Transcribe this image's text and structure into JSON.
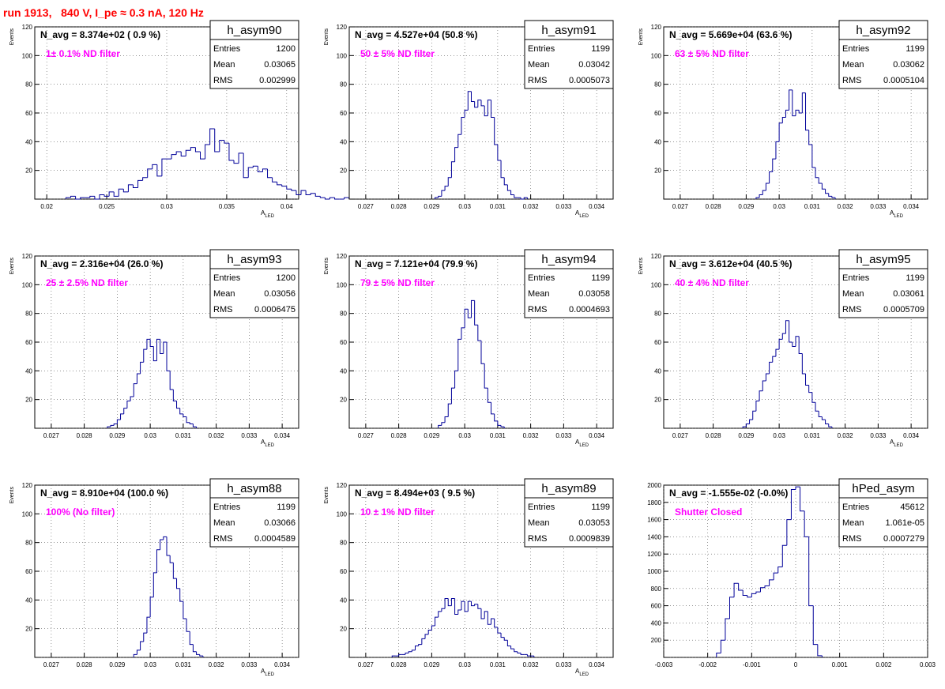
{
  "run_title": "run 1913,   840 V, I_pe ≈ 0.3 nA, 120 Hz",
  "colors": {
    "hist": "#000099",
    "title": "#ff0000",
    "label": "#ff00ff",
    "grid": "#555555"
  },
  "stats_labels": {
    "entries": "Entries",
    "mean": "Mean",
    "rms": "RMS"
  },
  "chart_data": [
    {
      "type": "histogram",
      "name": "h_asym90",
      "navg": "N_avg = 8.374e+02 ( 0.9 %)",
      "label": "1± 0.1% ND filter",
      "stats": {
        "entries": "1200",
        "mean": "0.03065",
        "rms": "0.002999"
      },
      "ylabel": "Events",
      "xlabel": "A",
      "xlabel_sub": "LED",
      "xlim": [
        0.019,
        0.041
      ],
      "ylim": [
        0,
        120
      ],
      "xticks": [
        0.02,
        0.025,
        0.03,
        0.035,
        0.04
      ],
      "xtick_labels": [
        "0.02",
        "0.025",
        "0.03",
        "0.035",
        "0.04"
      ],
      "yticks": [
        0,
        20,
        40,
        60,
        80,
        100,
        120
      ],
      "ytick_labels": [
        "",
        "20",
        "40",
        "60",
        "80",
        "100",
        "120"
      ],
      "x_start": 0.0216,
      "bin_width": 0.0004,
      "values": [
        1,
        2,
        0,
        1,
        1,
        2,
        0,
        3,
        2,
        5,
        2,
        7,
        5,
        10,
        8,
        13,
        15,
        21,
        24,
        16,
        28,
        28,
        31,
        33,
        30,
        34,
        36,
        33,
        28,
        38,
        49,
        33,
        41,
        39,
        27,
        25,
        32,
        15,
        22,
        23,
        19,
        21,
        15,
        12,
        10,
        9,
        7,
        6,
        3,
        6,
        3,
        4,
        2,
        1,
        0,
        1,
        0,
        0,
        1
      ]
    },
    {
      "type": "histogram",
      "name": "h_asym91",
      "navg": "N_avg = 4.527e+04 (50.8 %)",
      "label": "50 ± 5% ND filter",
      "stats": {
        "entries": "1199",
        "mean": "0.03042",
        "rms": "0.0005073"
      },
      "ylabel": "Events",
      "xlabel": "A",
      "xlabel_sub": "LED",
      "xlim": [
        0.0265,
        0.0345
      ],
      "ylim": [
        0,
        120
      ],
      "xticks": [
        0.027,
        0.028,
        0.029,
        0.03,
        0.031,
        0.032,
        0.033,
        0.034
      ],
      "xtick_labels": [
        "0.027",
        "0.028",
        "0.029",
        "0.03",
        "0.031",
        "0.032",
        "0.033",
        "0.034"
      ],
      "yticks": [
        0,
        20,
        40,
        60,
        80,
        100,
        120
      ],
      "ytick_labels": [
        "",
        "20",
        "40",
        "60",
        "80",
        "100",
        "120"
      ],
      "x_start": 0.0291,
      "bin_width": 0.0001,
      "values": [
        1,
        2,
        6,
        9,
        15,
        26,
        36,
        45,
        57,
        62,
        75,
        68,
        64,
        69,
        65,
        58,
        69,
        57,
        38,
        27,
        15,
        10,
        6,
        3,
        1,
        1,
        0,
        1
      ]
    },
    {
      "type": "histogram",
      "name": "h_asym92",
      "navg": "N_avg = 5.669e+04 (63.6 %)",
      "label": "63 ± 5% ND filter",
      "stats": {
        "entries": "1199",
        "mean": "0.03062",
        "rms": "0.0005104"
      },
      "ylabel": "Events",
      "xlabel": "A",
      "xlabel_sub": "LED",
      "xlim": [
        0.0265,
        0.0345
      ],
      "ylim": [
        0,
        120
      ],
      "xticks": [
        0.027,
        0.028,
        0.029,
        0.03,
        0.031,
        0.032,
        0.033,
        0.034
      ],
      "xtick_labels": [
        "0.027",
        "0.028",
        "0.029",
        "0.03",
        "0.031",
        "0.032",
        "0.033",
        "0.034"
      ],
      "yticks": [
        0,
        20,
        40,
        60,
        80,
        100,
        120
      ],
      "ytick_labels": [
        "",
        "20",
        "40",
        "60",
        "80",
        "100",
        "120"
      ],
      "x_start": 0.0293,
      "bin_width": 0.0001,
      "values": [
        1,
        3,
        6,
        11,
        19,
        28,
        40,
        53,
        57,
        62,
        76,
        58,
        62,
        60,
        74,
        48,
        38,
        22,
        15,
        11,
        7,
        4,
        2,
        1
      ]
    },
    {
      "type": "histogram",
      "name": "h_asym93",
      "navg": "N_avg = 2.316e+04 (26.0 %)",
      "label": "25 ± 2.5% ND filter",
      "stats": {
        "entries": "1200",
        "mean": "0.03056",
        "rms": "0.0006475"
      },
      "ylabel": "Events",
      "xlabel": "A",
      "xlabel_sub": "LED",
      "xlim": [
        0.0265,
        0.0345
      ],
      "ylim": [
        0,
        120
      ],
      "xticks": [
        0.027,
        0.028,
        0.029,
        0.03,
        0.031,
        0.032,
        0.033,
        0.034
      ],
      "xtick_labels": [
        "0.027",
        "0.028",
        "0.029",
        "0.03",
        "0.031",
        "0.032",
        "0.033",
        "0.034"
      ],
      "yticks": [
        0,
        20,
        40,
        60,
        80,
        100,
        120
      ],
      "ytick_labels": [
        "",
        "20",
        "40",
        "60",
        "80",
        "100",
        "120"
      ],
      "x_start": 0.0287,
      "bin_width": 0.0001,
      "values": [
        1,
        2,
        3,
        6,
        10,
        14,
        19,
        22,
        31,
        38,
        46,
        55,
        62,
        57,
        47,
        62,
        52,
        60,
        40,
        27,
        19,
        14,
        10,
        8,
        4,
        3,
        1
      ]
    },
    {
      "type": "histogram",
      "name": "h_asym94",
      "navg": "N_avg = 7.121e+04 (79.9 %)",
      "label": "79 ± 5% ND filter",
      "stats": {
        "entries": "1199",
        "mean": "0.03058",
        "rms": "0.0004693"
      },
      "ylabel": "Events",
      "xlabel": "A",
      "xlabel_sub": "LED",
      "xlim": [
        0.0265,
        0.0345
      ],
      "ylim": [
        0,
        120
      ],
      "xticks": [
        0.027,
        0.028,
        0.029,
        0.03,
        0.031,
        0.032,
        0.033,
        0.034
      ],
      "xtick_labels": [
        "0.027",
        "0.028",
        "0.029",
        "0.03",
        "0.031",
        "0.032",
        "0.033",
        "0.034"
      ],
      "yticks": [
        0,
        20,
        40,
        60,
        80,
        100,
        120
      ],
      "ytick_labels": [
        "",
        "20",
        "40",
        "60",
        "80",
        "100",
        "120"
      ],
      "x_start": 0.0292,
      "bin_width": 0.0001,
      "values": [
        2,
        4,
        8,
        17,
        28,
        40,
        62,
        70,
        83,
        77,
        89,
        72,
        61,
        45,
        28,
        18,
        10,
        5,
        2,
        1
      ]
    },
    {
      "type": "histogram",
      "name": "h_asym95",
      "navg": "N_avg = 3.612e+04 (40.5 %)",
      "label": "40 ± 4% ND filter",
      "stats": {
        "entries": "1199",
        "mean": "0.03061",
        "rms": "0.0005709"
      },
      "ylabel": "Events",
      "xlabel": "A",
      "xlabel_sub": "LED",
      "xlim": [
        0.0265,
        0.0345
      ],
      "ylim": [
        0,
        120
      ],
      "xticks": [
        0.027,
        0.028,
        0.029,
        0.03,
        0.031,
        0.032,
        0.033,
        0.034
      ],
      "xtick_labels": [
        "0.027",
        "0.028",
        "0.029",
        "0.03",
        "0.031",
        "0.032",
        "0.033",
        "0.034"
      ],
      "yticks": [
        0,
        20,
        40,
        60,
        80,
        100,
        120
      ],
      "ytick_labels": [
        "",
        "20",
        "40",
        "60",
        "80",
        "100",
        "120"
      ],
      "x_start": 0.0289,
      "bin_width": 0.0001,
      "values": [
        1,
        3,
        6,
        12,
        19,
        26,
        33,
        38,
        46,
        50,
        55,
        62,
        66,
        75,
        60,
        57,
        64,
        52,
        38,
        30,
        25,
        18,
        12,
        8,
        6,
        3,
        1
      ]
    },
    {
      "type": "histogram",
      "name": "h_asym88",
      "navg": "N_avg = 8.910e+04 (100.0 %)",
      "label": "100% (No filter)",
      "stats": {
        "entries": "1199",
        "mean": "0.03066",
        "rms": "0.0004589"
      },
      "ylabel": "Events",
      "xlabel": "A",
      "xlabel_sub": "LED",
      "xlim": [
        0.0265,
        0.0345
      ],
      "ylim": [
        0,
        120
      ],
      "xticks": [
        0.027,
        0.028,
        0.029,
        0.03,
        0.031,
        0.032,
        0.033,
        0.034
      ],
      "xtick_labels": [
        "0.027",
        "0.028",
        "0.029",
        "0.03",
        "0.031",
        "0.032",
        "0.033",
        "0.034"
      ],
      "yticks": [
        0,
        20,
        40,
        60,
        80,
        100,
        120
      ],
      "ytick_labels": [
        "",
        "20",
        "40",
        "60",
        "80",
        "100",
        "120"
      ],
      "x_start": 0.0295,
      "bin_width": 0.0001,
      "values": [
        2,
        5,
        11,
        17,
        28,
        42,
        59,
        75,
        82,
        84,
        71,
        66,
        55,
        48,
        39,
        27,
        18,
        9,
        4,
        2,
        1
      ]
    },
    {
      "type": "histogram",
      "name": "h_asym89",
      "navg": "N_avg = 8.494e+03 ( 9.5 %)",
      "label": "10 ± 1% ND filter",
      "stats": {
        "entries": "1199",
        "mean": "0.03053",
        "rms": "0.0009839"
      },
      "ylabel": "Events",
      "xlabel": "A",
      "xlabel_sub": "LED",
      "xlim": [
        0.0265,
        0.0345
      ],
      "ylim": [
        0,
        120
      ],
      "xticks": [
        0.027,
        0.028,
        0.029,
        0.03,
        0.031,
        0.032,
        0.033,
        0.034
      ],
      "xtick_labels": [
        "0.027",
        "0.028",
        "0.029",
        "0.03",
        "0.031",
        "0.032",
        "0.033",
        "0.034"
      ],
      "yticks": [
        0,
        20,
        40,
        60,
        80,
        100,
        120
      ],
      "ytick_labels": [
        "",
        "20",
        "40",
        "60",
        "80",
        "100",
        "120"
      ],
      "x_start": 0.0278,
      "bin_width": 0.0001,
      "values": [
        1,
        1,
        2,
        2,
        3,
        4,
        5,
        8,
        9,
        13,
        16,
        19,
        22,
        28,
        32,
        34,
        41,
        36,
        41,
        30,
        33,
        39,
        32,
        39,
        36,
        37,
        34,
        27,
        32,
        23,
        27,
        21,
        17,
        14,
        12,
        8,
        6,
        4,
        3,
        2,
        2,
        1,
        1
      ]
    },
    {
      "type": "histogram",
      "name": "hPed_asym",
      "navg": "N_avg = -1.555e-02 (-0.0%)",
      "label": "Shutter Closed",
      "stats": {
        "entries": "45612",
        "mean": "1.061e-05",
        "rms": "0.0007279"
      },
      "ylabel": "",
      "xlabel": "",
      "xlabel_sub": "",
      "xlim": [
        -0.003,
        0.003
      ],
      "ylim": [
        0,
        2000
      ],
      "xticks": [
        -0.003,
        -0.002,
        -0.001,
        0,
        0.001,
        0.002,
        0.003
      ],
      "xtick_labels": [
        "-0.003",
        "-0.002",
        "-0.001",
        "0",
        "0.001",
        "0.002",
        "0.003"
      ],
      "yticks": [
        0,
        200,
        400,
        600,
        800,
        1000,
        1200,
        1400,
        1600,
        1800,
        2000
      ],
      "ytick_labels": [
        "",
        "200",
        "400",
        "600",
        "800",
        "1000",
        "1200",
        "1400",
        "1600",
        "1800",
        "2000"
      ],
      "x_start": -0.0018,
      "bin_width": 0.0001,
      "values": [
        50,
        200,
        450,
        700,
        860,
        780,
        720,
        700,
        740,
        760,
        810,
        830,
        900,
        980,
        1050,
        1300,
        1600,
        1950,
        1980,
        1700,
        1400,
        600,
        150,
        20
      ]
    }
  ]
}
